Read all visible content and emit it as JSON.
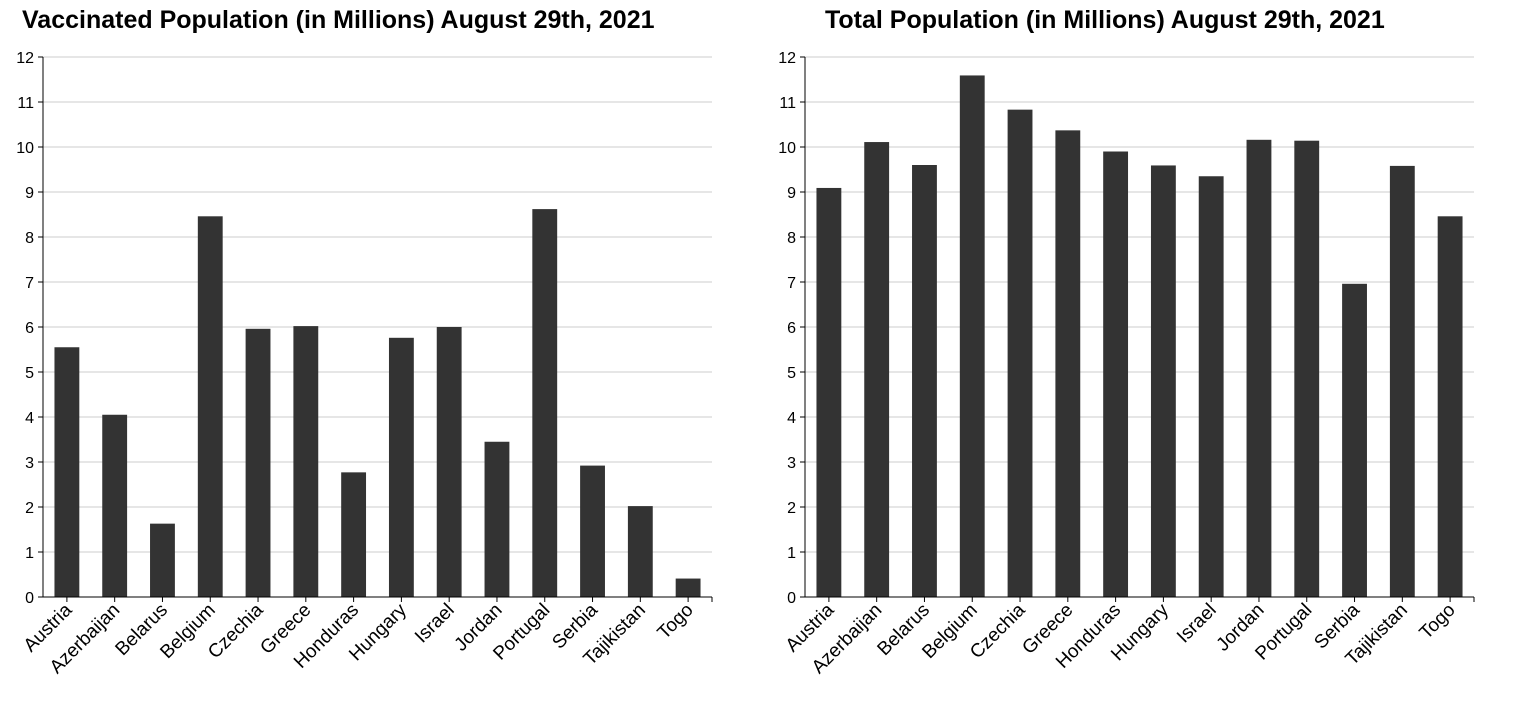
{
  "chart_data": [
    {
      "type": "bar",
      "title": "Vaccinated Population (in Millions) August 29th, 2021",
      "xlabel": "",
      "ylabel": "",
      "categories": [
        "Austria",
        "Azerbaijan",
        "Belarus",
        "Belgium",
        "Czechia",
        "Greece",
        "Honduras",
        "Hungary",
        "Israel",
        "Jordan",
        "Portugal",
        "Serbia",
        "Tajikistan",
        "Togo"
      ],
      "values": [
        5.55,
        4.05,
        1.63,
        8.46,
        5.96,
        6.02,
        2.77,
        5.76,
        6.0,
        3.45,
        8.62,
        2.92,
        2.02,
        0.41
      ],
      "ylim": [
        0,
        12
      ],
      "yticks": [
        "0",
        "1",
        "2",
        "3",
        "4",
        "5",
        "6",
        "7",
        "8",
        "9",
        "10",
        "11",
        "12"
      ],
      "grid": true,
      "bar_color": "#333333"
    },
    {
      "type": "bar",
      "title": "Total Population (in Millions) August 29th, 2021",
      "xlabel": "",
      "ylabel": "",
      "categories": [
        "Austria",
        "Azerbaijan",
        "Belarus",
        "Belgium",
        "Czechia",
        "Greece",
        "Honduras",
        "Hungary",
        "Israel",
        "Jordan",
        "Portugal",
        "Serbia",
        "Tajikistan",
        "Togo"
      ],
      "values": [
        9.09,
        10.11,
        9.6,
        11.59,
        10.83,
        10.37,
        9.9,
        9.59,
        9.35,
        10.16,
        10.14,
        6.96,
        9.58,
        8.46
      ],
      "ylim": [
        0,
        12
      ],
      "yticks": [
        "0",
        "1",
        "2",
        "3",
        "4",
        "5",
        "6",
        "7",
        "8",
        "9",
        "10",
        "11",
        "12"
      ],
      "grid": true,
      "bar_color": "#333333"
    }
  ]
}
